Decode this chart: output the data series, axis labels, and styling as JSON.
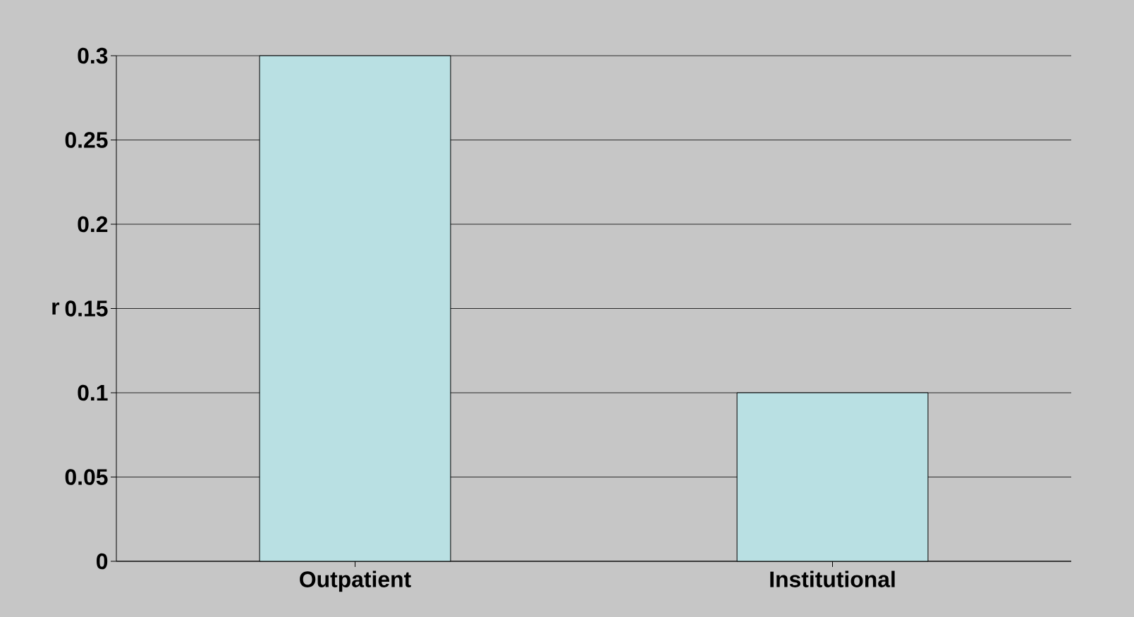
{
  "chart_data": {
    "type": "bar",
    "ylabel": "r",
    "categories": [
      "Outpatient",
      "Institutional"
    ],
    "values": [
      0.3,
      0.1
    ],
    "color": "#b9e0e3",
    "ylim": [
      0,
      0.3
    ],
    "yticks": [
      0,
      0.05,
      0.1,
      0.15,
      0.2,
      0.25,
      0.3
    ],
    "grid": "y"
  }
}
